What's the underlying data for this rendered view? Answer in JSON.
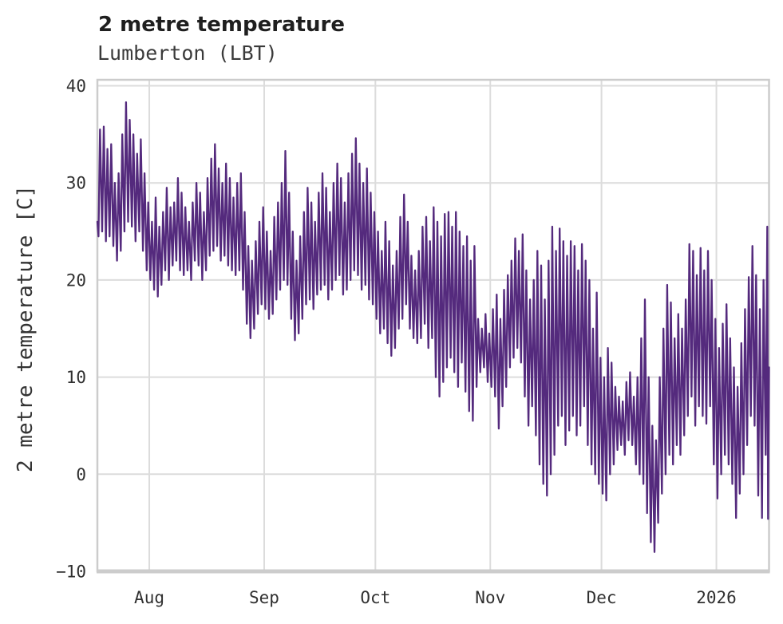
{
  "header": {
    "title": "2 metre temperature",
    "subtitle": "Lumberton (LBT)"
  },
  "chart_data": {
    "type": "line",
    "title": "2 metre temperature",
    "subtitle": "Lumberton (LBT)",
    "xlabel": "",
    "ylabel": "2 metre temperature [C]",
    "legend": "none",
    "grid": "on",
    "line_color": "#542a7d",
    "grid_color": "#dcdcdc",
    "spine_color": "#cccccc",
    "tick_color": "#303030",
    "y_axis": {
      "tick_values": [
        40,
        30,
        20,
        10,
        0,
        -10
      ],
      "tick_labels": [
        "40",
        "30",
        "20",
        "10",
        "0",
        "−10"
      ]
    },
    "x_axis": {
      "tick_labels": [
        "Aug",
        "Sep",
        "Oct",
        "Nov",
        "Dec",
        "2026"
      ],
      "tick_day_offsets": [
        14,
        45,
        75,
        106,
        136,
        167
      ],
      "unit": "days from first plotted sample (mid-July) to mid-January 2026"
    },
    "ylim": [
      -10,
      40.62
    ],
    "xlim_days": [
      0,
      181.2
    ],
    "series_head": [
      [
        0,
        26
      ]
    ],
    "series_tail": [
      [
        180.95,
        -4.6
      ],
      [
        181.2,
        11
      ]
    ],
    "daily_max": [
      35.5,
      35.8,
      33.5,
      34,
      30,
      31,
      35,
      38.3,
      36.5,
      35,
      33,
      34.5,
      31,
      28,
      26,
      28.5,
      25.5,
      27,
      29.5,
      27.5,
      28,
      30.5,
      29,
      27.5,
      26,
      28,
      30,
      29,
      27,
      30.5,
      32.5,
      34,
      31.5,
      30,
      32,
      30.5,
      28.5,
      30,
      31,
      27,
      23.5,
      22,
      24,
      26,
      27.5,
      25,
      23,
      26.5,
      28,
      30,
      33.3,
      29,
      25,
      22,
      24.5,
      27,
      29.5,
      28,
      26,
      29,
      31,
      29.5,
      27,
      30,
      32,
      30.5,
      28,
      31,
      33,
      34.6,
      32,
      30,
      31.5,
      29,
      27,
      25,
      23,
      26,
      24,
      21.5,
      23,
      26.5,
      28.8,
      26,
      22.5,
      21,
      23,
      25.5,
      26.5,
      24,
      27.5,
      26,
      24.5,
      26.8,
      27,
      25.5,
      27,
      25,
      23.5,
      24.5,
      22,
      23.5,
      16,
      15,
      16.5,
      14.5,
      17,
      18.5,
      16,
      19,
      20.5,
      22,
      24.3,
      23,
      24.7,
      21,
      18,
      20,
      23,
      21.5,
      18,
      22,
      25.5,
      23,
      25.3,
      24,
      22.5,
      24,
      23.5,
      21,
      23.7,
      22,
      20,
      15,
      18.7,
      12,
      10,
      13,
      11.5,
      9,
      8,
      7.5,
      9.5,
      10.5,
      8,
      10,
      14,
      18,
      10,
      5,
      3.5,
      10,
      15,
      19.5,
      17.7,
      14,
      16.5,
      15,
      18,
      23.7,
      23,
      20.5,
      23.3,
      21,
      23,
      20,
      16,
      13,
      15.5,
      17.5,
      14,
      11,
      9,
      13.5,
      17,
      20.3,
      23.5,
      20.5,
      17,
      20,
      25.5
    ],
    "daily_min": [
      24.5,
      25,
      24,
      24.5,
      23.5,
      22,
      23,
      25,
      26,
      25.5,
      24,
      25,
      23,
      21,
      20,
      19,
      18.3,
      19.5,
      21,
      20,
      21.5,
      22,
      21,
      20.5,
      21,
      20,
      22,
      21.5,
      20,
      21,
      22.5,
      23,
      23.5,
      22,
      22.5,
      21.5,
      21,
      20.5,
      21,
      19,
      15.5,
      14,
      15,
      16.5,
      17.5,
      17,
      16,
      16.5,
      18,
      19,
      20,
      19.5,
      16,
      13.8,
      14.5,
      16,
      17.5,
      18,
      17,
      18.5,
      19,
      19.5,
      18,
      19,
      20,
      20.5,
      18.5,
      19,
      20,
      21,
      20.5,
      19,
      19.5,
      18,
      17.5,
      16,
      14.5,
      15,
      13.5,
      12.2,
      13,
      15,
      16,
      17.5,
      15,
      14,
      13.5,
      14,
      15.5,
      13,
      14,
      10,
      8,
      9.5,
      11,
      12,
      10.5,
      9,
      11.5,
      8.5,
      6.5,
      5.5,
      9,
      10.5,
      11,
      9.5,
      9,
      8,
      4.7,
      7,
      9,
      11,
      12,
      13,
      11.5,
      8,
      5,
      7,
      4,
      1,
      -1,
      -2.2,
      0,
      2,
      5,
      6,
      3,
      4.5,
      6,
      4,
      5,
      7,
      3,
      1,
      0,
      -1,
      -2,
      -2.7,
      0,
      1,
      2.5,
      3,
      2,
      3.5,
      3,
      1,
      0,
      -1,
      -4,
      -7,
      -8,
      -5,
      -2,
      0,
      2,
      1,
      3,
      2,
      4,
      6,
      8,
      5,
      7,
      6,
      5.2,
      7,
      1,
      -2.5,
      0,
      2,
      1,
      -1,
      -4.5,
      -2,
      0,
      3,
      6,
      5,
      -2.2,
      -4.5,
      2
    ]
  }
}
